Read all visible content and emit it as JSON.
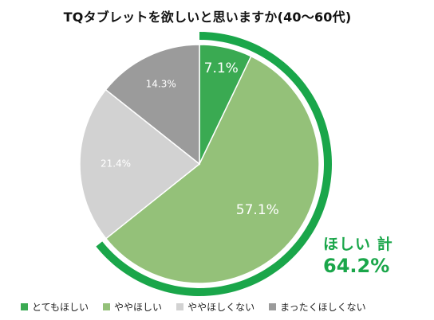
{
  "chart_data": {
    "type": "pie",
    "title": "TQタブレットを欲しいと思いますか(40～60代)",
    "slices": [
      {
        "name": "とてもほしい",
        "value": 7.1,
        "label": "7.1%",
        "color": "#3aaa52"
      },
      {
        "name": "ややほしい",
        "value": 57.1,
        "label": "57.1%",
        "color": "#94c179"
      },
      {
        "name": "ややほしくない",
        "value": 21.4,
        "label": "21.4%",
        "color": "#d2d2d2"
      },
      {
        "name": "まったくほしくない",
        "value": 14.3,
        "label": "14.3%",
        "color": "#9b9b9b"
      }
    ],
    "callout": {
      "label": "ほしい 計",
      "value": "64.2%",
      "color": "#1aa64a"
    },
    "legend_position": "bottom"
  }
}
